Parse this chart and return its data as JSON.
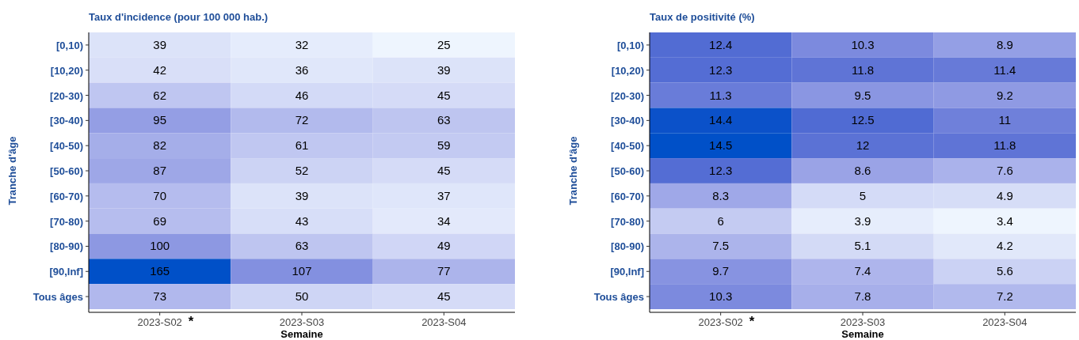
{
  "chart_data": [
    {
      "type": "heatmap",
      "title": "Taux d'incidence (pour 100 000 hab.)",
      "xlabel": "Semaine",
      "ylabel": "Tranche d'âge",
      "colors": [
        "#eef5fe",
        "#0050c8"
      ],
      "categories": [
        "2023-S02",
        "2023-S03",
        "2023-S04"
      ],
      "y_categories": [
        "[0,10)",
        "[10,20)",
        "[20-30)",
        "[30-40)",
        "[40-50)",
        "[50-60)",
        "[60-70)",
        "[70-80)",
        "[80-90)",
        "[90,Inf]",
        "Tous âges"
      ],
      "cells": [
        [
          39,
          32,
          25
        ],
        [
          42,
          36,
          39
        ],
        [
          62,
          46,
          45
        ],
        [
          95,
          72,
          63
        ],
        [
          82,
          61,
          59
        ],
        [
          87,
          52,
          45
        ],
        [
          70,
          39,
          37
        ],
        [
          69,
          43,
          34
        ],
        [
          100,
          63,
          49
        ],
        [
          165,
          107,
          77
        ],
        [
          73,
          50,
          45
        ]
      ],
      "data_labels": true,
      "annotations": [
        "*"
      ]
    },
    {
      "type": "heatmap",
      "title": "Taux de positivité (%)",
      "xlabel": "Semaine",
      "ylabel": "Tranche d'âge",
      "colors": [
        "#eef5fe",
        "#0050c8"
      ],
      "categories": [
        "2023-S02",
        "2023-S03",
        "2023-S04"
      ],
      "y_categories": [
        "[0,10)",
        "[10,20)",
        "[20-30)",
        "[30-40)",
        "[40-50)",
        "[50-60)",
        "[60-70)",
        "[70-80)",
        "[80-90)",
        "[90,Inf]",
        "Tous âges"
      ],
      "cells": [
        [
          12.4,
          10.3,
          8.9
        ],
        [
          12.3,
          11.8,
          11.4
        ],
        [
          11.3,
          9.5,
          9.2
        ],
        [
          14.4,
          12.5,
          11
        ],
        [
          14.5,
          12,
          11.8
        ],
        [
          12.3,
          8.6,
          7.6
        ],
        [
          8.3,
          5,
          4.9
        ],
        [
          6,
          3.9,
          3.4
        ],
        [
          7.5,
          5.1,
          4.2
        ],
        [
          9.7,
          7.4,
          5.6
        ],
        [
          10.3,
          7.8,
          7.2
        ]
      ],
      "data_labels": true,
      "annotations": [
        "*"
      ]
    }
  ]
}
